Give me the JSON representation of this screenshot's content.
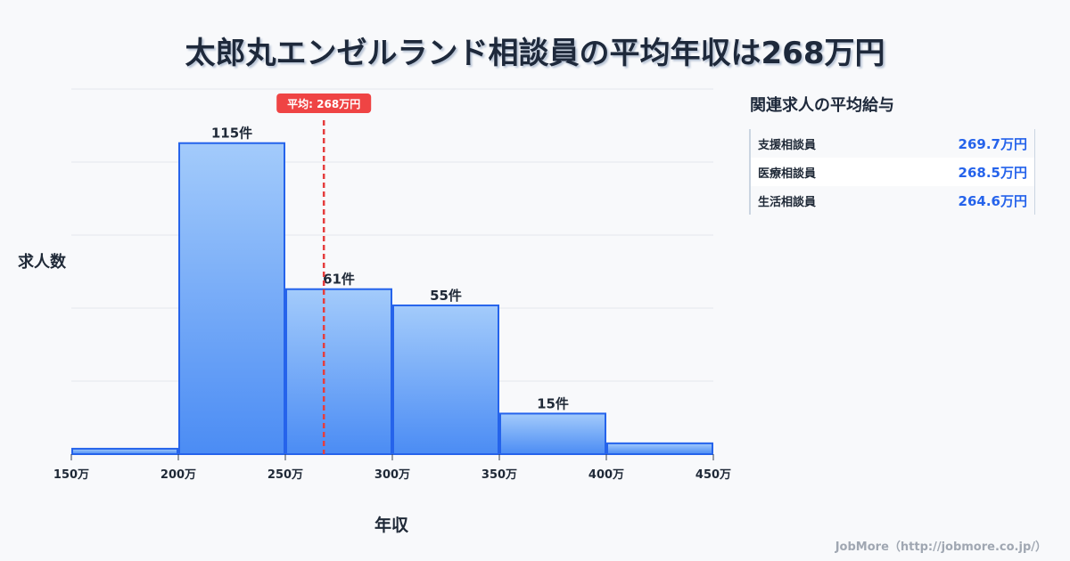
{
  "title": "太郎丸エンゼルランド相談員の平均年収は268万円",
  "chart_data": {
    "type": "bar",
    "title": "太郎丸エンゼルランド相談員の平均年収は268万円",
    "xlabel": "年収",
    "ylabel": "求人数",
    "bins": [
      [
        150,
        200
      ],
      [
        200,
        250
      ],
      [
        250,
        300
      ],
      [
        300,
        350
      ],
      [
        350,
        400
      ],
      [
        400,
        450
      ]
    ],
    "values": [
      2,
      115,
      61,
      55,
      15,
      4
    ],
    "data_labels": [
      "",
      "115件",
      "61件",
      "55件",
      "15件",
      ""
    ],
    "xticks": [
      150,
      200,
      250,
      300,
      350,
      400,
      450
    ],
    "xtick_labels": [
      "150万",
      "200万",
      "250万",
      "300万",
      "350万",
      "400万",
      "450万"
    ],
    "xlim": [
      150,
      450
    ],
    "ylim": [
      0,
      135
    ],
    "grid": true,
    "mean": 268,
    "mean_label": "平均: 268万円"
  },
  "side": {
    "title": "関連求人の平均給与",
    "rows": [
      {
        "name": "支援相談員",
        "value": "269.7万円"
      },
      {
        "name": "医療相談員",
        "value": "268.5万円"
      },
      {
        "name": "生活相談員",
        "value": "264.6万円"
      }
    ]
  },
  "footer": "JobMore（http://jobmore.co.jp/）"
}
